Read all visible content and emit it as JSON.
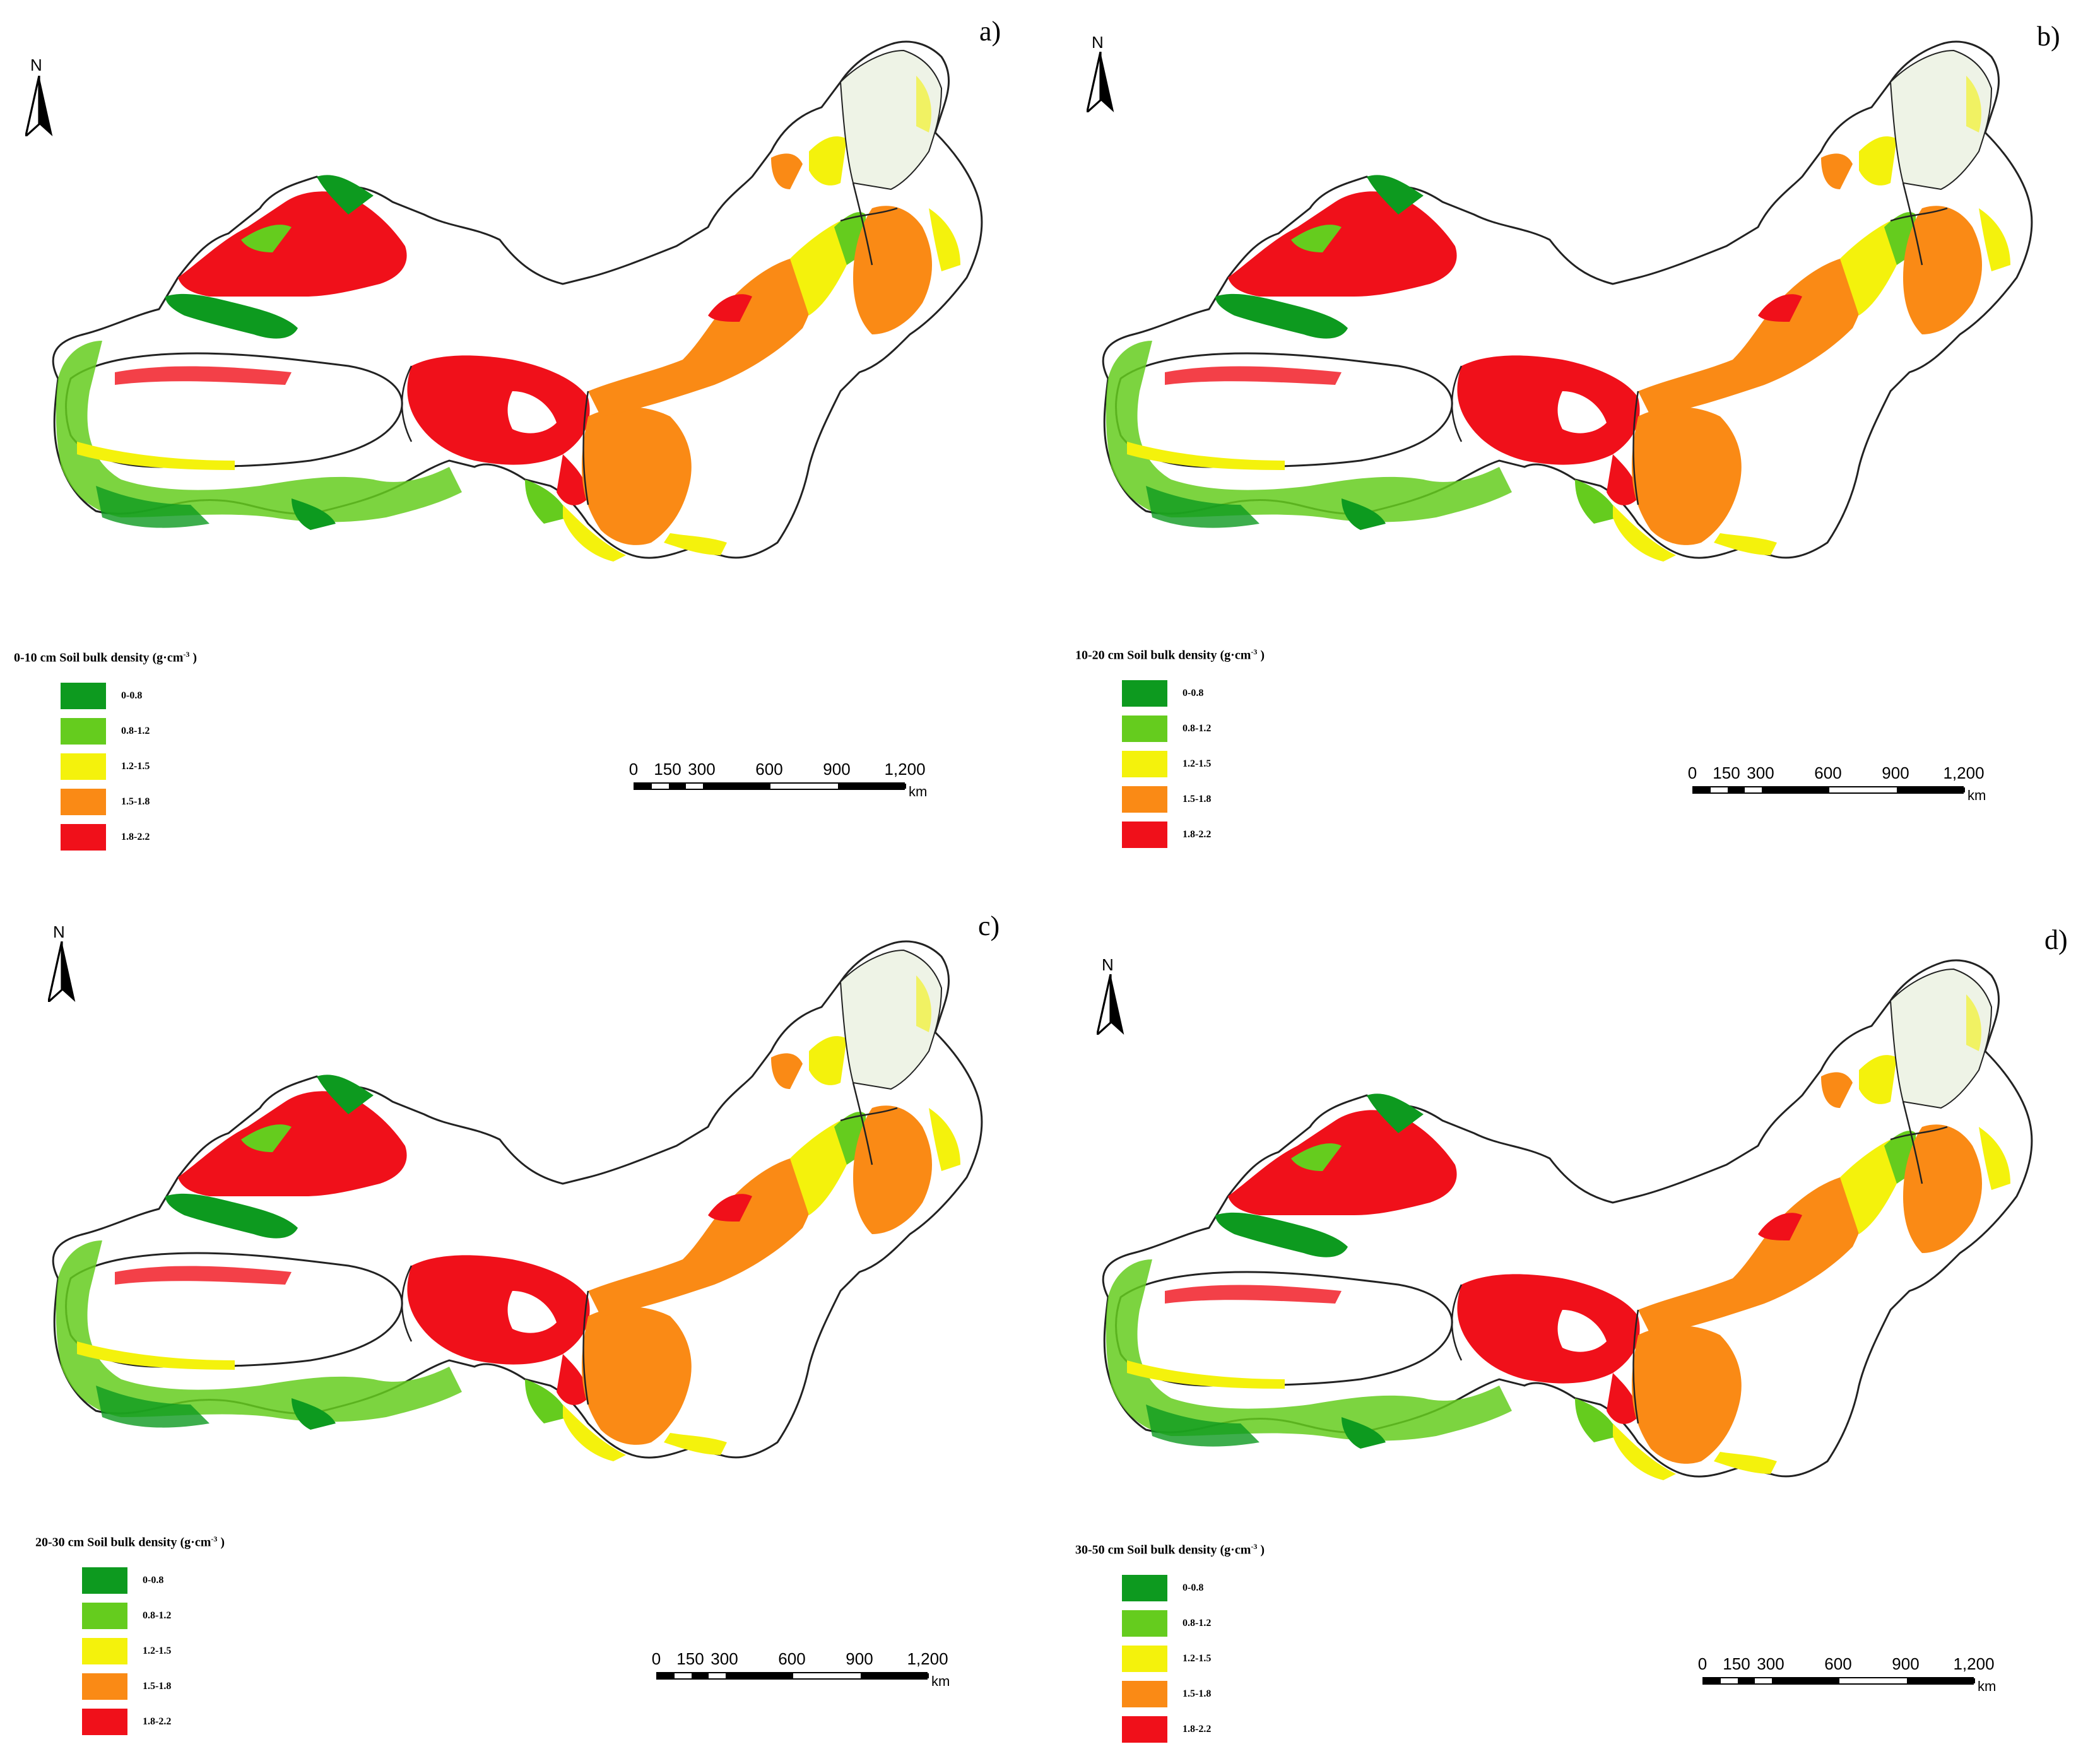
{
  "colors": {
    "class_0_0_8": "#0d9a1f",
    "class_0_8_1_2": "#65cc1e",
    "class_1_2_1_5": "#f4f20c",
    "class_1_5_1_8": "#fa8a15",
    "class_1_8_2_2": "#f0101a",
    "boundary": "#222222"
  },
  "north_arrow": "N",
  "legend_classes": [
    "0-0.8",
    "0.8-1.2",
    "1.2-1.5",
    "1.5-1.8",
    "1.8-2.2"
  ],
  "scale_bar": {
    "ticks": [
      "0",
      "150",
      "300",
      "600",
      "900",
      "1,200"
    ],
    "unit": "km"
  },
  "panels": [
    {
      "letter": "a)",
      "legend_title": "0-10 cm Soil bulk density (g·cm",
      "legend_exp": "-3",
      "legend_tail": ")"
    },
    {
      "letter": "b)",
      "legend_title": "10-20 cm Soil bulk density (g·cm",
      "legend_exp": "-3",
      "legend_tail": ")"
    },
    {
      "letter": "c)",
      "legend_title": "20-30 cm Soil bulk density (g·cm",
      "legend_exp": "-3",
      "legend_tail": ")"
    },
    {
      "letter": "d)",
      "legend_title": "30-50 cm Soil bulk density (g·cm",
      "legend_exp": "-3",
      "legend_tail": ")"
    }
  ]
}
